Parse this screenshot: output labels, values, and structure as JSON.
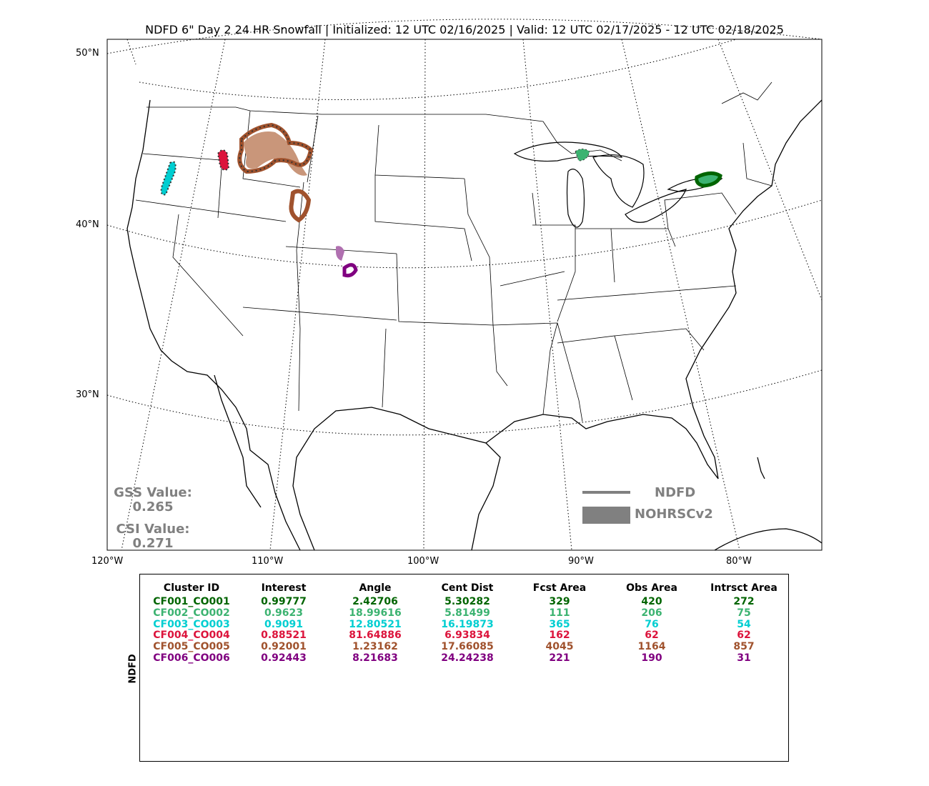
{
  "title": "NDFD 6\" Day 2 24 HR Snowfall | Initialized: 12 UTC 02/16/2025 | Valid: 12 UTC 02/17/2025 - 12 UTC 02/18/2025",
  "lat_labels": [
    "50°N",
    "40°N",
    "30°N"
  ],
  "lon_labels": [
    "120°W",
    "110°W",
    "100°W",
    "90°W",
    "80°W"
  ],
  "scores": {
    "gss_label": "GSS Value:",
    "gss_value": "0.265",
    "csi_label": "CSI Value:",
    "csi_value": "0.271"
  },
  "legend": {
    "forecast": "NDFD",
    "observed": "NOHRSCv2",
    "color": "#808080"
  },
  "table": {
    "side_label": "NDFD",
    "headers": [
      "Cluster ID",
      "Interest",
      "Angle",
      "Cent Dist",
      "Fcst Area",
      "Obs Area",
      "Intrsct Area"
    ],
    "rows": [
      {
        "color": "#006400",
        "cells": [
          "CF001_CO001",
          "0.99777",
          "2.42706",
          "5.30282",
          "329",
          "420",
          "272"
        ]
      },
      {
        "color": "#3cb371",
        "cells": [
          "CF002_CO002",
          "0.9623",
          "18.99616",
          "5.81499",
          "111",
          "206",
          "75"
        ]
      },
      {
        "color": "#00ced1",
        "cells": [
          "CF003_CO003",
          "0.9091",
          "12.80521",
          "16.19873",
          "365",
          "76",
          "54"
        ]
      },
      {
        "color": "#dc143c",
        "cells": [
          "CF004_CO004",
          "0.88521",
          "81.64886",
          "6.93834",
          "162",
          "62",
          "62"
        ]
      },
      {
        "color": "#a0522d",
        "cells": [
          "CF005_CO005",
          "0.92001",
          "1.23162",
          "17.66085",
          "4045",
          "1164",
          "857"
        ]
      },
      {
        "color": "#800080",
        "cells": [
          "CF006_CO006",
          "0.92443",
          "8.21683",
          "24.24238",
          "221",
          "190",
          "31"
        ]
      }
    ]
  }
}
